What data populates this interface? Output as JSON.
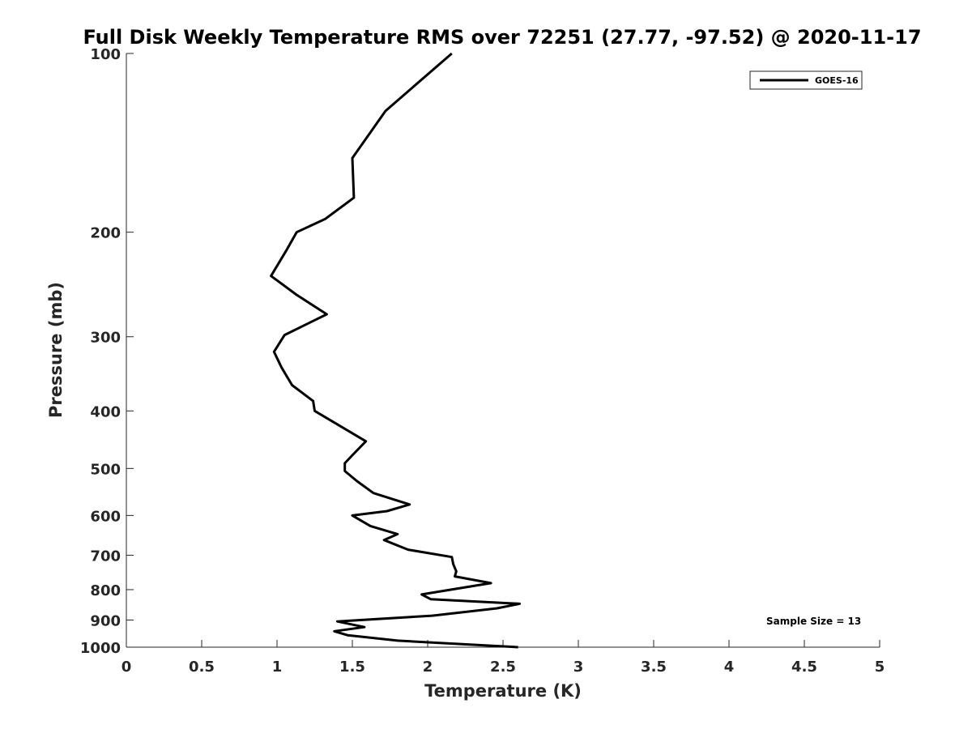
{
  "chart_data": {
    "type": "line",
    "title": "Full Disk Weekly Temperature RMS over 72251 (27.77, -97.52) @ 2020-11-17",
    "xlabel": "Temperature (K)",
    "ylabel": "Pressure (mb)",
    "xlim": [
      0,
      5
    ],
    "ylim": [
      100,
      1000
    ],
    "yscale": "log",
    "y_reversed": true,
    "grid": false,
    "legend_position": "top-right",
    "x_ticks": [
      "0",
      "0.5",
      "1",
      "1.5",
      "2",
      "2.5",
      "3",
      "3.5",
      "4",
      "4.5",
      "5"
    ],
    "y_ticks": [
      "100",
      "200",
      "300",
      "400",
      "500",
      "600",
      "700",
      "800",
      "900",
      "1000"
    ],
    "series": [
      {
        "name": "GOES-16",
        "color": "#000000",
        "points": [
          [
            2.16,
            100
          ],
          [
            1.72,
            125
          ],
          [
            1.5,
            150
          ],
          [
            1.51,
            175
          ],
          [
            1.32,
            190
          ],
          [
            1.13,
            200
          ],
          [
            1.06,
            215
          ],
          [
            0.96,
            237
          ],
          [
            1.13,
            255
          ],
          [
            1.33,
            275
          ],
          [
            1.05,
            298
          ],
          [
            0.98,
            318
          ],
          [
            1.03,
            338
          ],
          [
            1.1,
            362
          ],
          [
            1.24,
            385
          ],
          [
            1.25,
            400
          ],
          [
            1.59,
            450
          ],
          [
            1.5,
            475
          ],
          [
            1.45,
            490
          ],
          [
            1.45,
            505
          ],
          [
            1.53,
            525
          ],
          [
            1.64,
            550
          ],
          [
            1.88,
            575
          ],
          [
            1.73,
            590
          ],
          [
            1.5,
            600
          ],
          [
            1.62,
            625
          ],
          [
            1.8,
            645
          ],
          [
            1.71,
            660
          ],
          [
            1.87,
            685
          ],
          [
            2.16,
            705
          ],
          [
            2.17,
            725
          ],
          [
            2.19,
            745
          ],
          [
            2.18,
            760
          ],
          [
            2.42,
            780
          ],
          [
            1.96,
            815
          ],
          [
            2.02,
            830
          ],
          [
            2.61,
            845
          ],
          [
            2.46,
            860
          ],
          [
            2.03,
            885
          ],
          [
            1.4,
            905
          ],
          [
            1.58,
            925
          ],
          [
            1.38,
            940
          ],
          [
            1.47,
            955
          ],
          [
            1.8,
            975
          ],
          [
            2.6,
            1000
          ]
        ]
      }
    ],
    "annotation": "Sample Size = 13"
  }
}
